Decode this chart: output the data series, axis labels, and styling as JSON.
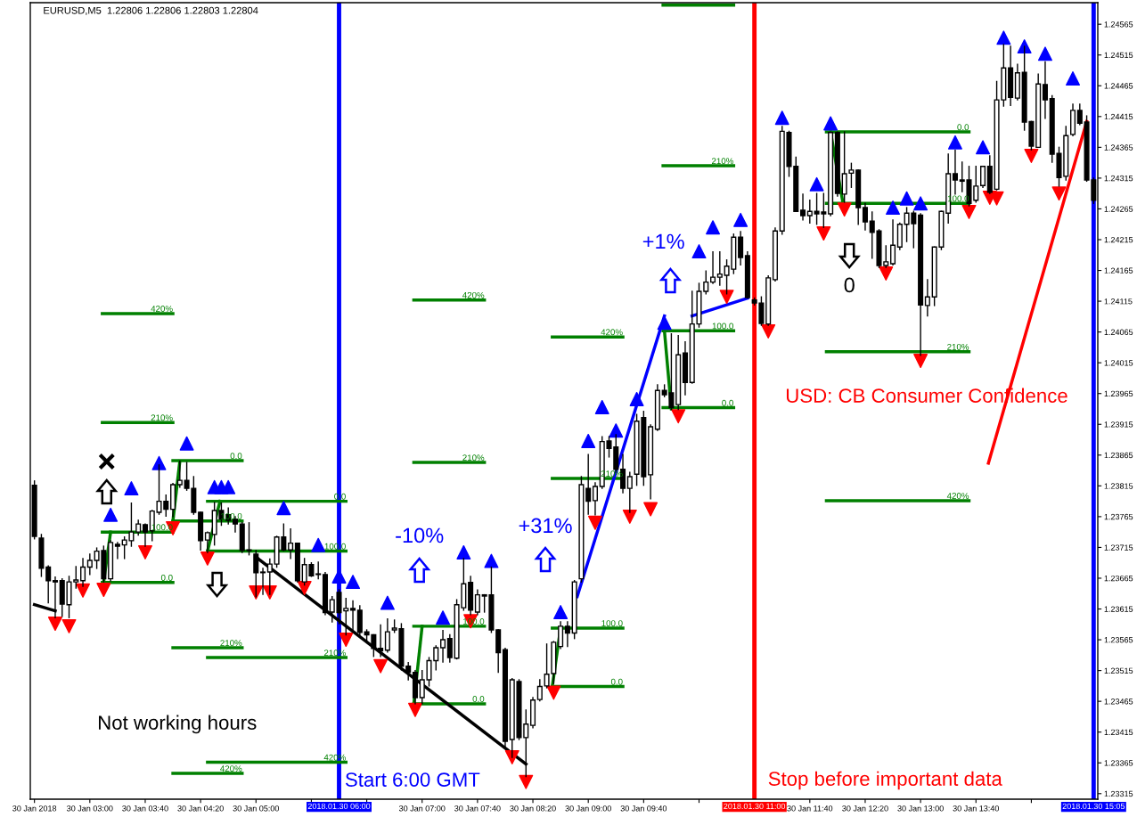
{
  "chart_data": {
    "type": "candlestick",
    "title": "EURUSD,M5  1.22806 1.22806 1.22803 1.22804",
    "x": [
      "2018-01-30T02:20",
      "2018-01-30T02:25",
      "2018-01-30T02:30",
      "2018-01-30T02:35",
      "2018-01-30T02:40",
      "2018-01-30T02:45",
      "2018-01-30T02:50",
      "2018-01-30T02:55",
      "2018-01-30T03:00",
      "2018-01-30T03:05",
      "2018-01-30T03:10",
      "2018-01-30T03:15",
      "2018-01-30T03:20",
      "2018-01-30T03:25",
      "2018-01-30T03:30",
      "2018-01-30T03:35",
      "2018-01-30T03:40",
      "2018-01-30T03:45",
      "2018-01-30T03:50",
      "2018-01-30T03:55",
      "2018-01-30T04:00",
      "2018-01-30T04:05",
      "2018-01-30T04:10",
      "2018-01-30T04:15",
      "2018-01-30T04:20",
      "2018-01-30T04:25",
      "2018-01-30T04:30",
      "2018-01-30T04:35",
      "2018-01-30T04:40",
      "2018-01-30T04:45",
      "2018-01-30T04:50",
      "2018-01-30T04:55",
      "2018-01-30T05:00",
      "2018-01-30T05:05",
      "2018-01-30T05:10",
      "2018-01-30T05:15",
      "2018-01-30T05:20",
      "2018-01-30T05:25",
      "2018-01-30T05:30",
      "2018-01-30T05:35",
      "2018-01-30T05:40",
      "2018-01-30T05:45",
      "2018-01-30T05:50",
      "2018-01-30T05:55",
      "2018-01-30T06:00",
      "2018-01-30T06:05",
      "2018-01-30T06:10",
      "2018-01-30T06:15",
      "2018-01-30T06:20",
      "2018-01-30T06:25",
      "2018-01-30T06:30",
      "2018-01-30T06:35",
      "2018-01-30T06:40",
      "2018-01-30T06:45",
      "2018-01-30T06:50",
      "2018-01-30T06:55",
      "2018-01-30T07:00",
      "2018-01-30T07:05",
      "2018-01-30T07:10",
      "2018-01-30T07:15",
      "2018-01-30T07:20",
      "2018-01-30T07:25",
      "2018-01-30T07:30",
      "2018-01-30T07:35",
      "2018-01-30T07:40",
      "2018-01-30T07:45",
      "2018-01-30T07:50",
      "2018-01-30T07:55",
      "2018-01-30T08:00",
      "2018-01-30T08:05",
      "2018-01-30T08:10",
      "2018-01-30T08:15",
      "2018-01-30T08:20",
      "2018-01-30T08:25",
      "2018-01-30T08:30",
      "2018-01-30T08:35",
      "2018-01-30T08:40",
      "2018-01-30T08:45",
      "2018-01-30T08:50",
      "2018-01-30T08:55",
      "2018-01-30T09:00",
      "2018-01-30T09:05",
      "2018-01-30T09:10",
      "2018-01-30T09:15",
      "2018-01-30T09:20",
      "2018-01-30T09:25",
      "2018-01-30T09:30",
      "2018-01-30T09:35",
      "2018-01-30T09:40",
      "2018-01-30T09:45",
      "2018-01-30T09:50",
      "2018-01-30T09:55",
      "2018-01-30T10:00",
      "2018-01-30T10:05",
      "2018-01-30T10:10",
      "2018-01-30T10:15",
      "2018-01-30T10:20",
      "2018-01-30T10:25",
      "2018-01-30T10:30",
      "2018-01-30T10:35",
      "2018-01-30T10:40",
      "2018-01-30T10:45",
      "2018-01-30T10:50",
      "2018-01-30T10:55",
      "2018-01-30T11:00",
      "2018-01-30T11:05",
      "2018-01-30T11:10",
      "2018-01-30T11:15",
      "2018-01-30T11:20",
      "2018-01-30T11:25",
      "2018-01-30T11:30",
      "2018-01-30T11:35",
      "2018-01-30T11:40",
      "2018-01-30T11:45",
      "2018-01-30T11:50",
      "2018-01-30T11:55",
      "2018-01-30T12:00",
      "2018-01-30T12:05",
      "2018-01-30T12:10",
      "2018-01-30T12:15",
      "2018-01-30T12:20",
      "2018-01-30T12:25",
      "2018-01-30T12:30",
      "2018-01-30T12:35",
      "2018-01-30T12:40",
      "2018-01-30T12:45",
      "2018-01-30T12:50",
      "2018-01-30T12:55",
      "2018-01-30T13:00",
      "2018-01-30T13:05",
      "2018-01-30T13:10",
      "2018-01-30T13:15",
      "2018-01-30T13:20",
      "2018-01-30T13:25",
      "2018-01-30T13:30",
      "2018-01-30T13:35",
      "2018-01-30T13:40",
      "2018-01-30T13:45",
      "2018-01-30T13:50",
      "2018-01-30T13:55",
      "2018-01-30T14:00",
      "2018-01-30T14:05",
      "2018-01-30T14:10",
      "2018-01-30T14:15",
      "2018-01-30T14:20",
      "2018-01-30T14:25",
      "2018-01-30T14:30",
      "2018-01-30T14:35",
      "2018-01-30T14:40",
      "2018-01-30T14:45",
      "2018-01-30T14:50",
      "2018-01-30T14:55",
      "2018-01-30T15:00",
      "2018-01-30T15:05"
    ],
    "ohlc": [
      [
        1.23816,
        1.23823,
        1.23729,
        1.23733
      ],
      [
        1.2373,
        1.23736,
        1.23668,
        1.23681
      ],
      [
        1.23683,
        1.23685,
        1.23625,
        1.23661
      ],
      [
        1.23661,
        1.23667,
        1.23601,
        1.23659
      ],
      [
        1.23661,
        1.23664,
        1.23603,
        1.23623
      ],
      [
        1.23622,
        1.23668,
        1.23601,
        1.23659
      ],
      [
        1.23659,
        1.23684,
        1.23649,
        1.23662
      ],
      [
        1.23661,
        1.23697,
        1.23652,
        1.23683
      ],
      [
        1.23683,
        1.23704,
        1.23671,
        1.23694
      ],
      [
        1.23694,
        1.23714,
        1.23681,
        1.23709
      ],
      [
        1.2371,
        1.23717,
        1.23659,
        1.23664
      ],
      [
        1.23664,
        1.23726,
        1.23661,
        1.23723
      ],
      [
        1.2372,
        1.23723,
        1.23697,
        1.23717
      ],
      [
        1.23719,
        1.23732,
        1.23697,
        1.23727
      ],
      [
        1.23726,
        1.23787,
        1.23717,
        1.2374
      ],
      [
        1.2374,
        1.23759,
        1.23735,
        1.23753
      ],
      [
        1.23752,
        1.23753,
        1.23717,
        1.2374
      ],
      [
        1.23742,
        1.23775,
        1.23726,
        1.23774
      ],
      [
        1.23772,
        1.23849,
        1.23769,
        1.2379
      ],
      [
        1.2379,
        1.238,
        1.23766,
        1.23777
      ],
      [
        1.23777,
        1.23819,
        1.23765,
        1.23817
      ],
      [
        1.23817,
        1.23855,
        1.23813,
        1.23824
      ],
      [
        1.23824,
        1.23853,
        1.23808,
        1.23811
      ],
      [
        1.23811,
        1.2383,
        1.23769,
        1.23772
      ],
      [
        1.23772,
        1.23772,
        1.23711,
        1.23726
      ],
      [
        1.23727,
        1.2374,
        1.23707,
        1.23739
      ],
      [
        1.23736,
        1.23788,
        1.23719,
        1.23775
      ],
      [
        1.23775,
        1.23787,
        1.23751,
        1.23761
      ],
      [
        1.23768,
        1.23779,
        1.23753,
        1.23759
      ],
      [
        1.23761,
        1.23765,
        1.2374,
        1.23753
      ],
      [
        1.23753,
        1.23755,
        1.23707,
        1.2371
      ],
      [
        1.23711,
        1.23755,
        1.23703,
        1.2371
      ],
      [
        1.23704,
        1.2371,
        1.23635,
        1.23674
      ],
      [
        1.23675,
        1.23681,
        1.23639,
        1.23674
      ],
      [
        1.23675,
        1.23696,
        1.23639,
        1.23688
      ],
      [
        1.23688,
        1.23733,
        1.23683,
        1.23732
      ],
      [
        1.23732,
        1.23753,
        1.2371,
        1.23711
      ],
      [
        1.23711,
        1.23745,
        1.23697,
        1.23722
      ],
      [
        1.23722,
        1.23722,
        1.23659,
        1.23661
      ],
      [
        1.23659,
        1.23697,
        1.23654,
        1.23687
      ],
      [
        1.23687,
        1.2369,
        1.23668,
        1.23669
      ],
      [
        1.23672,
        1.23691,
        1.23664,
        1.23671
      ],
      [
        1.23671,
        1.23674,
        1.23606,
        1.23609
      ],
      [
        1.2361,
        1.23635,
        1.23594,
        1.2363
      ],
      [
        1.23642,
        1.23646,
        1.23591,
        1.23609
      ],
      [
        1.23612,
        1.23632,
        1.23573,
        1.23616
      ],
      [
        1.23616,
        1.23628,
        1.23577,
        1.23613
      ],
      [
        1.23613,
        1.2362,
        1.23573,
        1.23577
      ],
      [
        1.23578,
        1.23581,
        1.23562,
        1.23573
      ],
      [
        1.23573,
        1.23573,
        1.23538,
        1.23551
      ],
      [
        1.23551,
        1.23589,
        1.23538,
        1.23547
      ],
      [
        1.23548,
        1.23599,
        1.23545,
        1.23578
      ],
      [
        1.23581,
        1.23597,
        1.23577,
        1.23584
      ],
      [
        1.23583,
        1.23591,
        1.23516,
        1.23522
      ],
      [
        1.23522,
        1.23528,
        1.235,
        1.23512
      ],
      [
        1.23512,
        1.23515,
        1.23461,
        1.23471
      ],
      [
        1.23471,
        1.23515,
        1.23461,
        1.235
      ],
      [
        1.235,
        1.23536,
        1.2349,
        1.23531
      ],
      [
        1.23531,
        1.23555,
        1.23516,
        1.23552
      ],
      [
        1.23552,
        1.2358,
        1.23529,
        1.23565
      ],
      [
        1.23567,
        1.23573,
        1.23529,
        1.23536
      ],
      [
        1.23535,
        1.2363,
        1.23534,
        1.23622
      ],
      [
        1.23617,
        1.23697,
        1.23613,
        1.23656
      ],
      [
        1.23658,
        1.23668,
        1.23606,
        1.23613
      ],
      [
        1.2361,
        1.23646,
        1.23606,
        1.23638
      ],
      [
        1.23636,
        1.23638,
        1.2361,
        1.23638
      ],
      [
        1.23638,
        1.23683,
        1.23577,
        1.23581
      ],
      [
        1.23581,
        1.23581,
        1.23512,
        1.23544
      ],
      [
        1.23549,
        1.23551,
        1.23389,
        1.234
      ],
      [
        1.23403,
        1.23502,
        1.23374,
        1.235
      ],
      [
        1.23497,
        1.235,
        1.23403,
        1.23406
      ],
      [
        1.23406,
        1.23451,
        1.23343,
        1.23428
      ],
      [
        1.23426,
        1.23471,
        1.23422,
        1.23467
      ],
      [
        1.23468,
        1.235,
        1.23466,
        1.23489
      ],
      [
        1.2349,
        1.23558,
        1.23487,
        1.23509
      ],
      [
        1.2351,
        1.23562,
        1.23494,
        1.23561
      ],
      [
        1.23554,
        1.23594,
        1.23551,
        1.23587
      ],
      [
        1.23587,
        1.23594,
        1.23554,
        1.23576
      ],
      [
        1.23576,
        1.23661,
        1.23567,
        1.23659
      ],
      [
        1.23664,
        1.2383,
        1.23659,
        1.23817
      ],
      [
        1.23811,
        1.23866,
        1.23769,
        1.2379
      ],
      [
        1.23791,
        1.2382,
        1.23768,
        1.23814
      ],
      [
        1.23814,
        1.23895,
        1.23811,
        1.23887
      ],
      [
        1.23888,
        1.23895,
        1.23862,
        1.23876
      ],
      [
        1.23878,
        1.23898,
        1.23837,
        1.23842
      ],
      [
        1.23842,
        1.23866,
        1.23804,
        1.23811
      ],
      [
        1.23811,
        1.23837,
        1.23772,
        1.2383
      ],
      [
        1.23834,
        1.23931,
        1.23816,
        1.2392
      ],
      [
        1.23926,
        1.23936,
        1.23816,
        1.2383
      ],
      [
        1.23833,
        1.23914,
        1.23794,
        1.23911
      ],
      [
        1.23907,
        1.23979,
        1.23905,
        1.2397
      ],
      [
        1.2397,
        1.23979,
        1.2396,
        1.23963
      ],
      [
        1.23966,
        1.24062,
        1.23939,
        1.23942
      ],
      [
        1.23947,
        1.24059,
        1.23939,
        1.24028
      ],
      [
        1.24031,
        1.24049,
        1.23963,
        1.23983
      ],
      [
        1.23983,
        1.24131,
        1.23982,
        1.24078
      ],
      [
        1.24078,
        1.24144,
        1.24073,
        1.24131
      ],
      [
        1.24131,
        1.24164,
        1.24127,
        1.24146
      ],
      [
        1.24146,
        1.24195,
        1.24144,
        1.24154
      ],
      [
        1.24154,
        1.24195,
        1.24141,
        1.24159
      ],
      [
        1.24157,
        1.24182,
        1.24127,
        1.24172
      ],
      [
        1.24167,
        1.24224,
        1.2416,
        1.24219
      ],
      [
        1.24219,
        1.24228,
        1.24174,
        1.24186
      ],
      [
        1.24189,
        1.24195,
        1.2412,
        1.24121
      ],
      [
        1.24117,
        1.2412,
        1.24109,
        1.24112
      ],
      [
        1.24112,
        1.24122,
        1.24076,
        1.24079
      ],
      [
        1.24078,
        1.24156,
        1.24076,
        1.24153
      ],
      [
        1.2415,
        1.24234,
        1.24148,
        1.24229
      ],
      [
        1.24229,
        1.24399,
        1.24224,
        1.24391
      ],
      [
        1.24389,
        1.24391,
        1.24318,
        1.24334
      ],
      [
        1.24334,
        1.24349,
        1.24261,
        1.24261
      ],
      [
        1.24263,
        1.24289,
        1.24247,
        1.24254
      ],
      [
        1.24254,
        1.24279,
        1.24242,
        1.24261
      ],
      [
        1.24261,
        1.2429,
        1.2424,
        1.24257
      ],
      [
        1.2426,
        1.2429,
        1.24235,
        1.24257
      ],
      [
        1.24257,
        1.2439,
        1.24254,
        1.24389
      ],
      [
        1.24389,
        1.2439,
        1.24286,
        1.2429
      ],
      [
        1.24289,
        1.2439,
        1.24276,
        1.24322
      ],
      [
        1.24323,
        1.24339,
        1.243,
        1.24328
      ],
      [
        1.24328,
        1.24328,
        1.2424,
        1.24267
      ],
      [
        1.24267,
        1.24274,
        1.24231,
        1.24244
      ],
      [
        1.24245,
        1.2426,
        1.24185,
        1.24227
      ],
      [
        1.24229,
        1.24231,
        1.2417,
        1.24173
      ],
      [
        1.24173,
        1.24205,
        1.2417,
        1.24179
      ],
      [
        1.24176,
        1.24247,
        1.24174,
        1.24206
      ],
      [
        1.24203,
        1.24242,
        1.24199,
        1.2424
      ],
      [
        1.2424,
        1.24267,
        1.24212,
        1.24258
      ],
      [
        1.24258,
        1.24261,
        1.24202,
        1.24241
      ],
      [
        1.24255,
        1.24257,
        1.24027,
        1.24109
      ],
      [
        1.24108,
        1.2415,
        1.24091,
        1.24122
      ],
      [
        1.24122,
        1.24203,
        1.24108,
        1.24203
      ],
      [
        1.24203,
        1.24261,
        1.24199,
        1.24261
      ],
      [
        1.24258,
        1.24354,
        1.24242,
        1.24322
      ],
      [
        1.24322,
        1.2436,
        1.24289,
        1.24312
      ],
      [
        1.24312,
        1.24341,
        1.24293,
        1.2431
      ],
      [
        1.24312,
        1.24334,
        1.2427,
        1.24274
      ],
      [
        1.24279,
        1.24334,
        1.24276,
        1.24302
      ],
      [
        1.24303,
        1.24334,
        1.243,
        1.24334
      ],
      [
        1.24334,
        1.24351,
        1.2429,
        1.24292
      ],
      [
        1.24297,
        1.24472,
        1.24296,
        1.24442
      ],
      [
        1.24442,
        1.24532,
        1.24432,
        1.24494
      ],
      [
        1.24494,
        1.24529,
        1.24433,
        1.24446
      ],
      [
        1.24445,
        1.245,
        1.24442,
        1.24486
      ],
      [
        1.24487,
        1.24529,
        1.24393,
        1.24406
      ],
      [
        1.24407,
        1.24407,
        1.24361,
        1.24367
      ],
      [
        1.24365,
        1.24484,
        1.24365,
        1.24468
      ],
      [
        1.24467,
        1.24504,
        1.24412,
        1.24442
      ],
      [
        1.24444,
        1.24449,
        1.24341,
        1.24354
      ],
      [
        1.24355,
        1.24365,
        1.24302,
        1.24316
      ],
      [
        1.24318,
        1.24399,
        1.24312,
        1.24384
      ],
      [
        1.24386,
        1.24435,
        1.24384,
        1.24425
      ],
      [
        1.24425,
        1.24435,
        1.24402,
        1.24404
      ],
      [
        1.24406,
        1.24416,
        1.2431,
        1.24312
      ],
      [
        1.24312,
        1.24315,
        1.24274,
        1.24279
      ]
    ],
    "series": [
      {
        "type": "line",
        "color": "#008000",
        "x": [
          "2018-01-30T03:09",
          "2018-01-30T04:00"
        ],
        "values": [
          1.24095,
          1.24095
        ]
      },
      {
        "type": "line",
        "color": "#008000",
        "x": [
          "2018-01-30T03:09",
          "2018-01-30T04:00"
        ],
        "values": [
          1.23918,
          1.23918
        ]
      },
      {
        "type": "line",
        "color": "#008000",
        "x": [
          "2018-01-30T03:09",
          "2018-01-30T04:00"
        ],
        "values": [
          1.2374,
          1.2374
        ]
      },
      {
        "type": "line",
        "color": "#008000",
        "x": [
          "2018-01-30T03:09",
          "2018-01-30T04:00"
        ],
        "values": [
          1.23658,
          1.23658
        ]
      },
      {
        "type": "line",
        "color": "#008000",
        "x": [
          "2018-01-30T04:00",
          "2018-01-30T04:50"
        ],
        "values": [
          1.23856,
          1.23856
        ]
      },
      {
        "type": "line",
        "color": "#008000",
        "x": [
          "2018-01-30T04:00",
          "2018-01-30T04:50"
        ],
        "values": [
          1.23758,
          1.23758
        ]
      },
      {
        "type": "line",
        "color": "#008000",
        "x": [
          "2018-01-30T04:00",
          "2018-01-30T04:50"
        ],
        "values": [
          1.23552,
          1.23552
        ]
      },
      {
        "type": "line",
        "color": "#008000",
        "x": [
          "2018-01-30T04:00",
          "2018-01-30T04:50"
        ],
        "values": [
          1.23348,
          1.23348
        ]
      },
      {
        "type": "line",
        "color": "#008000",
        "x": [
          "2018-01-30T04:25",
          "2018-01-30T06:05"
        ],
        "values": [
          1.2379,
          1.2379
        ]
      },
      {
        "type": "line",
        "color": "#008000",
        "x": [
          "2018-01-30T04:25",
          "2018-01-30T06:05"
        ],
        "values": [
          1.23709,
          1.23709
        ]
      },
      {
        "type": "line",
        "color": "#008000",
        "x": [
          "2018-01-30T04:25",
          "2018-01-30T06:05"
        ],
        "values": [
          1.23536,
          1.23536
        ]
      },
      {
        "type": "line",
        "color": "#008000",
        "x": [
          "2018-01-30T04:25",
          "2018-01-30T06:05"
        ],
        "values": [
          1.23366,
          1.23366
        ]
      },
      {
        "type": "line",
        "color": "#008000",
        "x": [
          "2018-01-30T06:54",
          "2018-01-30T07:45"
        ],
        "values": [
          1.24117,
          1.24117
        ]
      },
      {
        "type": "line",
        "color": "#008000",
        "x": [
          "2018-01-30T06:54",
          "2018-01-30T07:45"
        ],
        "values": [
          1.23853,
          1.23853
        ]
      },
      {
        "type": "line",
        "color": "#008000",
        "x": [
          "2018-01-30T06:54",
          "2018-01-30T07:45"
        ],
        "values": [
          1.23587,
          1.23587
        ]
      },
      {
        "type": "line",
        "color": "#008000",
        "x": [
          "2018-01-30T06:54",
          "2018-01-30T07:45"
        ],
        "values": [
          1.23461,
          1.23461
        ]
      },
      {
        "type": "line",
        "color": "#008000",
        "x": [
          "2018-01-30T08:34",
          "2018-01-30T09:25"
        ],
        "values": [
          1.24057,
          1.24057
        ]
      },
      {
        "type": "line",
        "color": "#008000",
        "x": [
          "2018-01-30T08:34",
          "2018-01-30T09:25"
        ],
        "values": [
          1.23827,
          1.23827
        ]
      },
      {
        "type": "line",
        "color": "#008000",
        "x": [
          "2018-01-30T08:34",
          "2018-01-30T09:25"
        ],
        "values": [
          1.23584,
          1.23584
        ]
      },
      {
        "type": "line",
        "color": "#008000",
        "x": [
          "2018-01-30T08:34",
          "2018-01-30T09:25"
        ],
        "values": [
          1.23489,
          1.23489
        ]
      },
      {
        "type": "line",
        "color": "#008000",
        "x": [
          "2018-01-30T09:54",
          "2018-01-30T10:45"
        ],
        "values": [
          1.24596,
          1.24596
        ]
      },
      {
        "type": "line",
        "color": "#008000",
        "x": [
          "2018-01-30T09:54",
          "2018-01-30T10:45"
        ],
        "values": [
          1.24335,
          1.24335
        ]
      },
      {
        "type": "line",
        "color": "#008000",
        "x": [
          "2018-01-30T09:54",
          "2018-01-30T10:45"
        ],
        "values": [
          1.24067,
          1.24067
        ]
      },
      {
        "type": "line",
        "color": "#008000",
        "x": [
          "2018-01-30T09:54",
          "2018-01-30T10:45"
        ],
        "values": [
          1.23942,
          1.23942
        ]
      },
      {
        "type": "line",
        "color": "#008000",
        "x": [
          "2018-01-30T11:52",
          "2018-01-30T13:35"
        ],
        "values": [
          1.2439,
          1.2439
        ]
      },
      {
        "type": "line",
        "color": "#008000",
        "x": [
          "2018-01-30T11:52",
          "2018-01-30T13:35"
        ],
        "values": [
          1.24274,
          1.24274
        ]
      },
      {
        "type": "line",
        "color": "#008000",
        "x": [
          "2018-01-30T11:52",
          "2018-01-30T13:35"
        ],
        "values": [
          1.24033,
          1.24033
        ]
      },
      {
        "type": "line",
        "color": "#008000",
        "x": [
          "2018-01-30T11:52",
          "2018-01-30T13:35"
        ],
        "values": [
          1.23791,
          1.23791
        ]
      },
      {
        "type": "line",
        "color": "#008000",
        "x": [
          "2018-01-30T03:10",
          "2018-01-30T03:15"
        ],
        "values": [
          1.23659,
          1.2374
        ]
      },
      {
        "type": "line",
        "color": "#008000",
        "x": [
          "2018-01-30T04:00",
          "2018-01-30T04:05"
        ],
        "values": [
          1.23758,
          1.23855
        ]
      },
      {
        "type": "line",
        "color": "#008000",
        "x": [
          "2018-01-30T04:25",
          "2018-01-30T04:34"
        ],
        "values": [
          1.23709,
          1.2379
        ]
      },
      {
        "type": "line",
        "color": "#008000",
        "x": [
          "2018-01-30T06:54",
          "2018-01-30T07:00"
        ],
        "values": [
          1.23461,
          1.23587
        ]
      },
      {
        "type": "line",
        "color": "#008000",
        "x": [
          "2018-01-30T08:34",
          "2018-01-30T08:40"
        ],
        "values": [
          1.23489,
          1.23584
        ]
      },
      {
        "type": "line",
        "color": "#008000",
        "x": [
          "2018-01-30T09:55",
          "2018-01-30T10:00"
        ],
        "values": [
          1.24067,
          1.2394
        ]
      },
      {
        "type": "line",
        "color": "#008000",
        "x": [
          "2018-01-30T11:55",
          "2018-01-30T12:04"
        ],
        "values": [
          1.2439,
          1.24274
        ]
      },
      {
        "type": "line",
        "color": "#000000",
        "x": [
          "2018-01-30T02:20",
          "2018-01-30T02:35"
        ],
        "values": [
          1.23622,
          1.23612
        ]
      },
      {
        "type": "line",
        "color": "#000000",
        "x": [
          "2018-01-30T05:02",
          "2018-01-30T08:15"
        ],
        "values": [
          1.23696,
          1.23363
        ]
      },
      {
        "type": "line",
        "color": "#0000ff",
        "x": [
          "2018-01-30T08:52",
          "2018-01-30T09:55"
        ],
        "values": [
          1.23635,
          1.24091
        ]
      },
      {
        "type": "line",
        "color": "#0000ff",
        "x": [
          "2018-01-30T10:15",
          "2018-01-30T10:55"
        ],
        "values": [
          1.24091,
          1.2412
        ]
      },
      {
        "type": "line",
        "color": "#ff0000",
        "x": [
          "2018-01-30T13:49",
          "2018-01-30T15:00"
        ],
        "values": [
          1.23852,
          1.24407
        ]
      },
      {
        "type": "scatter",
        "marker": "triangle",
        "color": "#0000ff",
        "x": [
          "2018-01-30T03:15",
          "2018-01-30T03:30",
          "2018-01-30T03:50",
          "2018-01-30T04:10",
          "2018-01-30T04:30",
          "2018-01-30T04:35",
          "2018-01-30T04:40",
          "2018-01-30T05:20",
          "2018-01-30T05:45",
          "2018-01-30T06:00",
          "2018-01-30T06:10",
          "2018-01-30T06:35",
          "2018-01-30T07:15",
          "2018-01-30T07:30",
          "2018-01-30T07:50",
          "2018-01-30T08:40",
          "2018-01-30T09:00",
          "2018-01-30T09:10",
          "2018-01-30T09:20",
          "2018-01-30T09:35",
          "2018-01-30T09:55",
          "2018-01-30T10:20",
          "2018-01-30T10:30",
          "2018-01-30T10:50",
          "2018-01-30T11:20",
          "2018-01-30T11:45",
          "2018-01-30T11:55",
          "2018-01-30T12:40",
          "2018-01-30T12:50",
          "2018-01-30T13:00",
          "2018-01-30T13:25",
          "2018-01-30T13:45",
          "2018-01-30T14:00",
          "2018-01-30T14:15",
          "2018-01-30T14:30",
          "2018-01-30T14:50"
        ],
        "values": [
          1.23768,
          1.23811,
          1.23852,
          1.23884,
          1.23813,
          1.23813,
          1.23813,
          1.23779,
          1.23719,
          1.23668,
          1.23659,
          1.23625,
          1.23601,
          1.23707,
          1.23693,
          1.2361,
          1.23888,
          1.23943,
          1.23905,
          1.23956,
          1.2408,
          1.24196,
          1.24235,
          1.24247,
          1.24413,
          1.24305,
          1.24404,
          1.24267,
          1.24282,
          1.24274,
          1.24373,
          1.24365,
          1.24543,
          1.24529,
          1.24517,
          1.24477
        ]
      },
      {
        "type": "scatter",
        "marker": "triangle_down",
        "color": "#ff0000",
        "x": [
          "2018-01-30T02:35",
          "2018-01-30T02:45",
          "2018-01-30T02:55",
          "2018-01-30T03:10",
          "2018-01-30T03:40",
          "2018-01-30T04:00",
          "2018-01-30T04:25",
          "2018-01-30T05:00",
          "2018-01-30T05:10",
          "2018-01-30T05:35",
          "2018-01-30T06:05",
          "2018-01-30T06:30",
          "2018-01-30T06:55",
          "2018-01-30T07:35",
          "2018-01-30T08:05",
          "2018-01-30T08:15",
          "2018-01-30T08:35",
          "2018-01-30T09:05",
          "2018-01-30T09:30",
          "2018-01-30T09:45",
          "2018-01-30T10:05",
          "2018-01-30T10:40",
          "2018-01-30T11:10",
          "2018-01-30T11:50",
          "2018-01-30T12:05",
          "2018-01-30T12:35",
          "2018-01-30T13:00",
          "2018-01-30T13:35",
          "2018-01-30T13:50",
          "2018-01-30T13:55",
          "2018-01-30T14:20",
          "2018-01-30T14:40"
        ],
        "values": [
          1.23591,
          1.23587,
          1.23645,
          1.23646,
          1.23707,
          1.23746,
          1.23697,
          1.23642,
          1.23642,
          1.23649,
          1.23565,
          1.23522,
          1.23451,
          1.23595,
          1.23374,
          1.23334,
          1.23479,
          1.23755,
          1.23765,
          1.23777,
          1.23928,
          1.24122,
          1.24066,
          1.24225,
          1.24264,
          1.2416,
          1.24018,
          1.2426,
          1.24283,
          1.24282,
          1.24351,
          1.2429
        ]
      }
    ],
    "annotations": [
      {
        "text": "420%",
        "x": "2018-01-30T04:00",
        "y": 1.24095
      },
      {
        "text": "210%",
        "x": "2018-01-30T04:00",
        "y": 1.23918
      },
      {
        "text": "100.0",
        "x": "2018-01-30T04:00",
        "y": 1.2374
      },
      {
        "text": "0.0",
        "x": "2018-01-30T04:00",
        "y": 1.23658
      },
      {
        "text": "0.0",
        "x": "2018-01-30T04:50",
        "y": 1.23856
      },
      {
        "text": "100.0",
        "x": "2018-01-30T04:50",
        "y": 1.23758
      },
      {
        "text": "210%",
        "x": "2018-01-30T04:50",
        "y": 1.23552
      },
      {
        "text": "420%",
        "x": "2018-01-30T04:50",
        "y": 1.23348
      },
      {
        "text": "0.0",
        "x": "2018-01-30T06:05",
        "y": 1.2379
      },
      {
        "text": "100.0",
        "x": "2018-01-30T06:05",
        "y": 1.23709
      },
      {
        "text": "210%",
        "x": "2018-01-30T06:05",
        "y": 1.23536
      },
      {
        "text": "420%",
        "x": "2018-01-30T06:05",
        "y": 1.23366
      },
      {
        "text": "420%",
        "x": "2018-01-30T07:45",
        "y": 1.24117
      },
      {
        "text": "210%",
        "x": "2018-01-30T07:45",
        "y": 1.23853
      },
      {
        "text": "100.0",
        "x": "2018-01-30T07:45",
        "y": 1.23587
      },
      {
        "text": "0.0",
        "x": "2018-01-30T07:45",
        "y": 1.23461
      },
      {
        "text": "420%",
        "x": "2018-01-30T09:25",
        "y": 1.24057
      },
      {
        "text": "210%",
        "x": "2018-01-30T09:25",
        "y": 1.23827
      },
      {
        "text": "100.0",
        "x": "2018-01-30T09:25",
        "y": 1.23584
      },
      {
        "text": "0.0",
        "x": "2018-01-30T09:25",
        "y": 1.23489
      },
      {
        "text": "210%",
        "x": "2018-01-30T10:45",
        "y": 1.24335
      },
      {
        "text": "100.0",
        "x": "2018-01-30T10:45",
        "y": 1.24067
      },
      {
        "text": "0.0",
        "x": "2018-01-30T10:45",
        "y": 1.23942
      },
      {
        "text": "0.0",
        "x": "2018-01-30T13:35",
        "y": 1.2439
      },
      {
        "text": "100.0",
        "x": "2018-01-30T13:35",
        "y": 1.24274
      },
      {
        "text": "210%",
        "x": "2018-01-30T13:35",
        "y": 1.24033
      },
      {
        "text": "420%",
        "x": "2018-01-30T13:35",
        "y": 1.23791
      },
      "Not working hours",
      "Start 6:00 GMT",
      "Stop before important data",
      "USD: CB Consumer Confidence",
      "-10%",
      "+31%",
      "+1%",
      "0"
    ],
    "ref_lines": [
      {
        "axis": "x",
        "value": "2018-01-30T06:00",
        "label": "2018.01.30 06:00",
        "color": "#0000ff"
      },
      {
        "axis": "x",
        "value": "2018-01-30T11:00",
        "label": "2018.01.30 11:00",
        "color": "#ff0000"
      },
      {
        "axis": "x",
        "value": "2018-01-30T15:05",
        "label": "2018.01.30 15:05",
        "color": "#0000ff"
      }
    ],
    "xlim": [
      "2018-01-30T02:17",
      "2018-01-30T15:08"
    ],
    "xticks": [
      {
        "value": "2018-01-30T02:20",
        "label": "30 Jan 2018"
      },
      {
        "value": "2018-01-30T03:00",
        "label": "30 Jan 03:00"
      },
      {
        "value": "2018-01-30T03:40",
        "label": "30 Jan 03:40"
      },
      {
        "value": "2018-01-30T04:20",
        "label": "30 Jan 04:20"
      },
      {
        "value": "2018-01-30T05:00",
        "label": "30 Jan 05:00"
      },
      {
        "value": "2018-01-30T05:40",
        "label": null
      },
      {
        "value": "2018-01-30T06:20",
        "label": null
      },
      {
        "value": "2018-01-30T07:00",
        "label": "30 Jan 07:00"
      },
      {
        "value": "2018-01-30T07:40",
        "label": "30 Jan 07:40"
      },
      {
        "value": "2018-01-30T08:20",
        "label": "30 Jan 08:20"
      },
      {
        "value": "2018-01-30T09:00",
        "label": "30 Jan 09:00"
      },
      {
        "value": "2018-01-30T09:40",
        "label": "30 Jan 09:40"
      },
      {
        "value": "2018-01-30T10:20",
        "label": null
      },
      {
        "value": "2018-01-30T11:40",
        "label": "30 Jan 11:40"
      },
      {
        "value": "2018-01-30T12:20",
        "label": "30 Jan 12:20"
      },
      {
        "value": "2018-01-30T13:00",
        "label": "30 Jan 13:00"
      },
      {
        "value": "2018-01-30T13:40",
        "label": "30 Jan 13:40"
      },
      {
        "value": "2018-01-30T14:20",
        "label": null
      }
    ],
    "ylim": [
      1.23306,
      1.246
    ],
    "yticks": [
      1.23315,
      1.23365,
      1.23415,
      1.23465,
      1.23515,
      1.23565,
      1.23615,
      1.23665,
      1.23715,
      1.23765,
      1.23815,
      1.23865,
      1.23915,
      1.23965,
      1.24015,
      1.24065,
      1.24115,
      1.24165,
      1.24215,
      1.24265,
      1.24315,
      1.24365,
      1.24415,
      1.24465,
      1.24515,
      1.24565
    ]
  }
}
